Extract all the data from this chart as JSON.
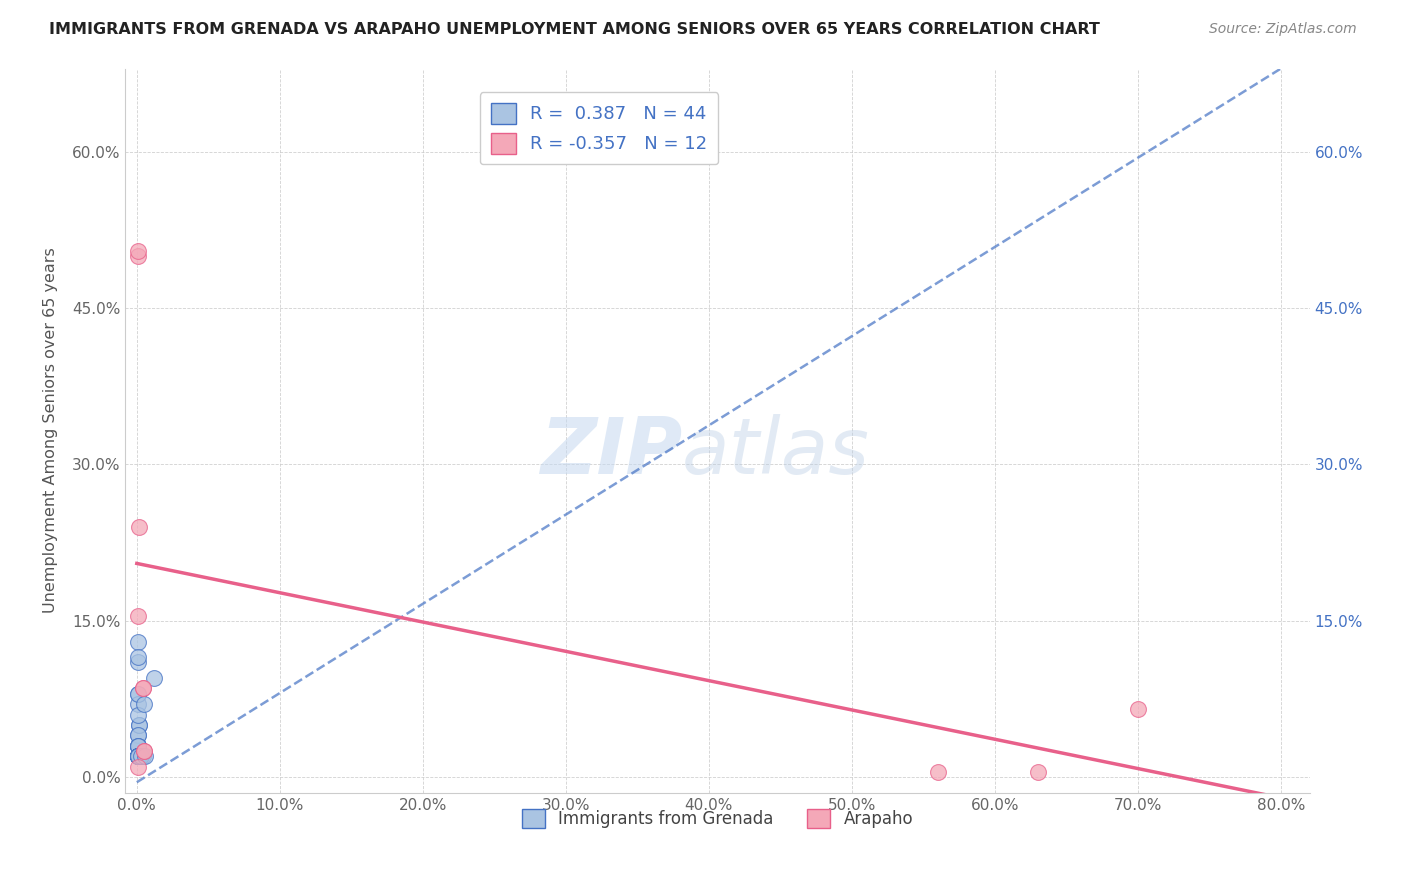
{
  "title": "IMMIGRANTS FROM GRENADA VS ARAPAHO UNEMPLOYMENT AMONG SENIORS OVER 65 YEARS CORRELATION CHART",
  "source": "Source: ZipAtlas.com",
  "ylabel": "Unemployment Among Seniors over 65 years",
  "xlabel": "",
  "legend_labels": [
    "Immigrants from Grenada",
    "Arapaho"
  ],
  "r_blue": 0.387,
  "n_blue": 44,
  "r_pink": -0.357,
  "n_pink": 12,
  "blue_color": "#aac4e2",
  "pink_color": "#f4a8b8",
  "blue_line_color": "#4472c4",
  "pink_line_color": "#e8608a",
  "watermark_zip": "ZIP",
  "watermark_atlas": "atlas",
  "blue_scatter_x": [
    0.0008,
    0.0015,
    0.0025,
    0.0008,
    0.004,
    0.0015,
    0.0008,
    0.0008,
    0.0008,
    0.0008,
    0.0008,
    0.0008,
    0.0008,
    0.0008,
    0.0008,
    0.0015,
    0.0008,
    0.0008,
    0.0008,
    0.0008,
    0.0008,
    0.0008,
    0.0008,
    0.0008,
    0.0008,
    0.0008,
    0.0008,
    0.0008,
    0.0008,
    0.0008,
    0.0015,
    0.0008,
    0.0008,
    0.0008,
    0.0008,
    0.0008,
    0.0008,
    0.0008,
    0.0008,
    0.0008,
    0.003,
    0.005,
    0.006,
    0.012
  ],
  "blue_scatter_y": [
    0.13,
    0.02,
    0.02,
    0.11,
    0.02,
    0.05,
    0.08,
    0.02,
    0.07,
    0.115,
    0.03,
    0.04,
    0.02,
    0.03,
    0.08,
    0.05,
    0.02,
    0.03,
    0.04,
    0.02,
    0.03,
    0.02,
    0.02,
    0.02,
    0.03,
    0.02,
    0.02,
    0.02,
    0.02,
    0.02,
    0.02,
    0.02,
    0.02,
    0.02,
    0.02,
    0.02,
    0.02,
    0.02,
    0.02,
    0.06,
    0.02,
    0.07,
    0.02,
    0.095
  ],
  "pink_scatter_x": [
    0.0005,
    0.0005,
    0.0015,
    0.001,
    0.001,
    0.004,
    0.004,
    0.005,
    0.005,
    0.56,
    0.63,
    0.7
  ],
  "pink_scatter_y": [
    0.5,
    0.505,
    0.24,
    0.155,
    0.01,
    0.085,
    0.085,
    0.025,
    0.025,
    0.005,
    0.005,
    0.065
  ],
  "blue_trend_x": [
    0.0,
    0.8
  ],
  "blue_trend_y": [
    -0.005,
    0.68
  ],
  "pink_trend_x": [
    0.0,
    0.8
  ],
  "pink_trend_y": [
    0.205,
    -0.02
  ],
  "xlim": [
    -0.008,
    0.82
  ],
  "ylim": [
    -0.015,
    0.68
  ],
  "xticks": [
    0.0,
    0.1,
    0.2,
    0.3,
    0.4,
    0.5,
    0.6,
    0.7,
    0.8
  ],
  "xticklabels": [
    "0.0%",
    "10.0%",
    "20.0%",
    "30.0%",
    "40.0%",
    "50.0%",
    "60.0%",
    "70.0%",
    "80.0%"
  ],
  "yticks_left": [
    0.0,
    0.15,
    0.3,
    0.45,
    0.6
  ],
  "yticklabels_left": [
    "0.0%",
    "15.0%",
    "30.0%",
    "45.0%",
    "60.0%"
  ],
  "yticks_right": [
    0.15,
    0.3,
    0.45,
    0.6
  ],
  "yticklabels_right": [
    "15.0%",
    "30.0%",
    "45.0%",
    "60.0%"
  ]
}
